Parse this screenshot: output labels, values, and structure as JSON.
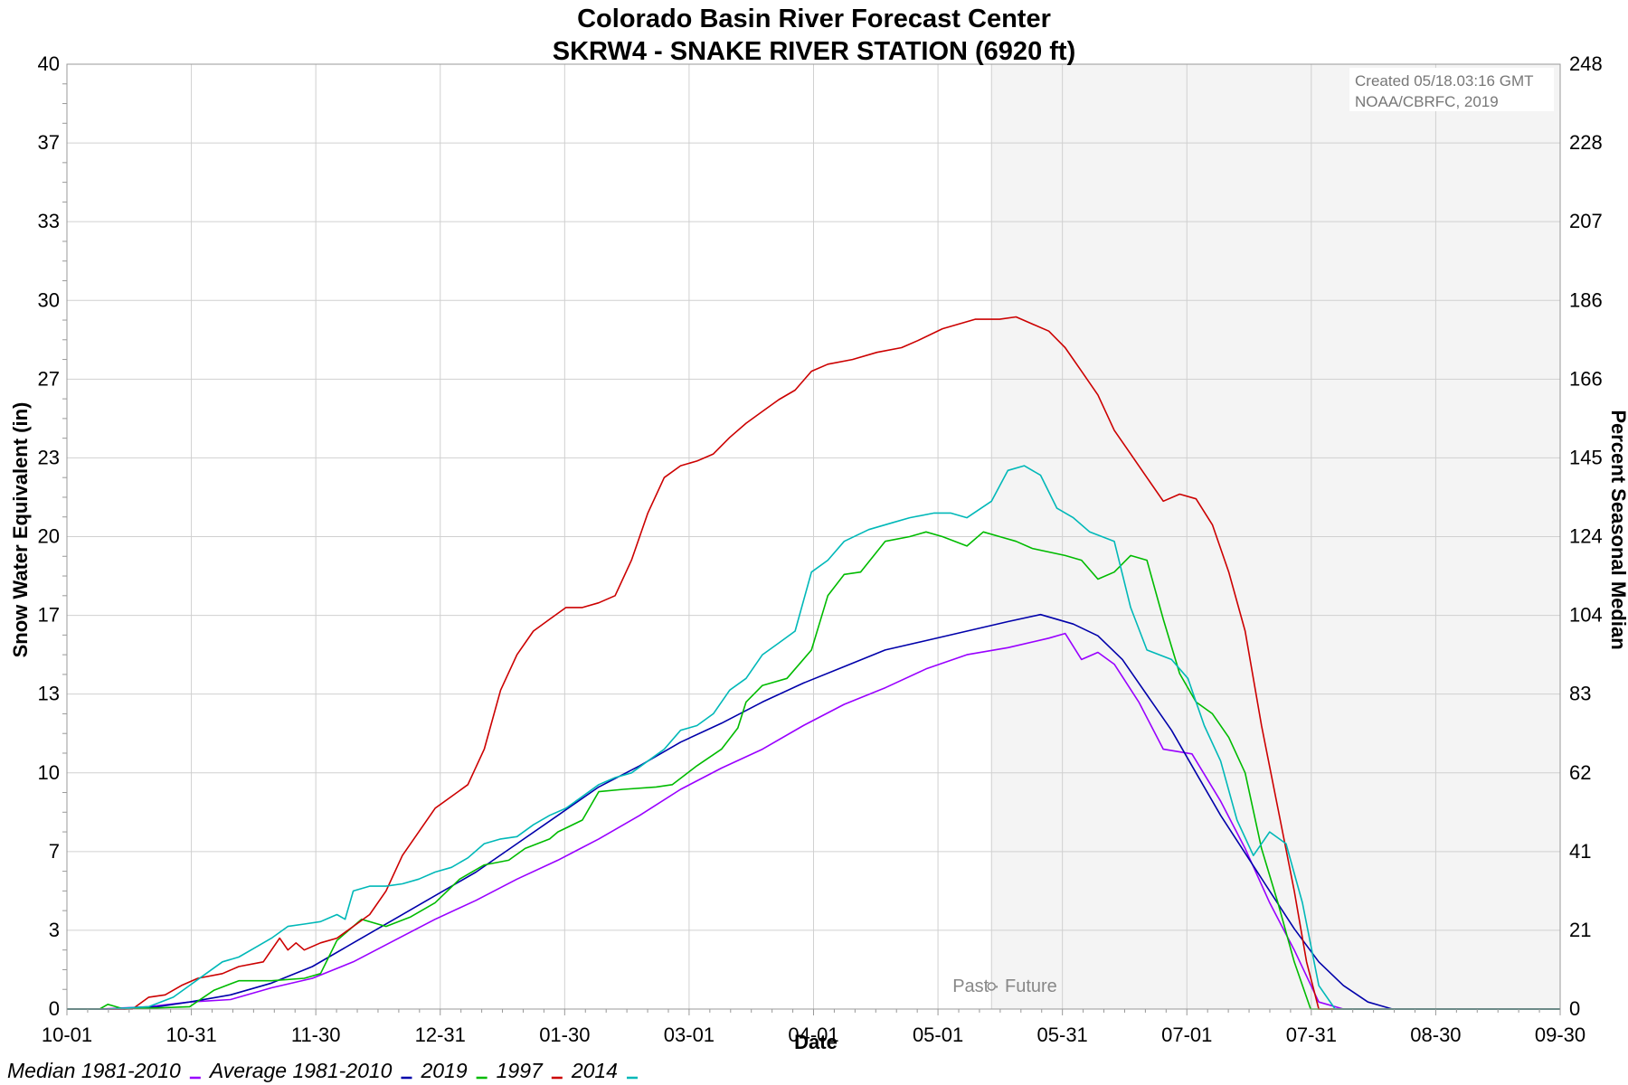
{
  "chart_data": {
    "type": "line",
    "title": "Colorado Basin River Forecast Center",
    "subtitle": "SKRW4 - SNAKE RIVER STATION (6920 ft)",
    "xlabel": "Date",
    "ylabel": "Snow Water Equivalent (in)",
    "y2label": "Percent Seasonal Median",
    "ylim": [
      0,
      40
    ],
    "y_ticks": [
      "0",
      "3",
      "7",
      "10",
      "13",
      "17",
      "20",
      "23",
      "27",
      "30",
      "33",
      "37",
      "40"
    ],
    "y2_ticks": [
      "0",
      "21",
      "41",
      "62",
      "83",
      "104",
      "124",
      "145",
      "166",
      "186",
      "207",
      "228",
      "248"
    ],
    "x_ticks": [
      "10-01",
      "10-31",
      "11-30",
      "12-31",
      "01-30",
      "03-01",
      "04-01",
      "05-01",
      "05-31",
      "07-01",
      "07-31",
      "08-30",
      "09-30"
    ],
    "xlim_days": [
      0,
      365
    ],
    "grid": true,
    "legend_position": "bottom-left",
    "created_note": [
      "Created 05/18.03:16 GMT",
      "NOAA/CBRFC, 2019"
    ],
    "past_future_label": "Past · Future",
    "current_day": 226,
    "series": [
      {
        "name": "Median 1981-2010",
        "color": "#9900ff",
        "points": [
          [
            0,
            0
          ],
          [
            8,
            0
          ],
          [
            20,
            0.1
          ],
          [
            30,
            0.3
          ],
          [
            40,
            0.4
          ],
          [
            50,
            0.9
          ],
          [
            60,
            1.3
          ],
          [
            70,
            2.0
          ],
          [
            80,
            2.9
          ],
          [
            90,
            3.8
          ],
          [
            100,
            4.6
          ],
          [
            110,
            5.5
          ],
          [
            120,
            6.3
          ],
          [
            130,
            7.2
          ],
          [
            140,
            8.2
          ],
          [
            150,
            9.3
          ],
          [
            160,
            10.2
          ],
          [
            170,
            11.0
          ],
          [
            180,
            12.0
          ],
          [
            190,
            12.9
          ],
          [
            200,
            13.6
          ],
          [
            210,
            14.4
          ],
          [
            220,
            15.0
          ],
          [
            230,
            15.3
          ],
          [
            240,
            15.7
          ],
          [
            244,
            15.9
          ],
          [
            248,
            14.8
          ],
          [
            252,
            15.1
          ],
          [
            256,
            14.6
          ],
          [
            262,
            13.0
          ],
          [
            268,
            11.0
          ],
          [
            275,
            10.8
          ],
          [
            282,
            8.8
          ],
          [
            288,
            6.8
          ],
          [
            294,
            4.5
          ],
          [
            300,
            2.5
          ],
          [
            306,
            0.3
          ],
          [
            312,
            0
          ],
          [
            365,
            0
          ]
        ]
      },
      {
        "name": "Average 1981-2010",
        "color": "#0000aa",
        "points": [
          [
            0,
            0
          ],
          [
            14,
            0
          ],
          [
            22,
            0.1
          ],
          [
            30,
            0.3
          ],
          [
            40,
            0.6
          ],
          [
            50,
            1.1
          ],
          [
            60,
            1.8
          ],
          [
            70,
            2.8
          ],
          [
            80,
            3.8
          ],
          [
            90,
            4.8
          ],
          [
            100,
            5.8
          ],
          [
            110,
            7.0
          ],
          [
            120,
            8.2
          ],
          [
            130,
            9.4
          ],
          [
            140,
            10.3
          ],
          [
            150,
            11.3
          ],
          [
            160,
            12.1
          ],
          [
            170,
            13.0
          ],
          [
            180,
            13.8
          ],
          [
            190,
            14.5
          ],
          [
            200,
            15.2
          ],
          [
            210,
            15.6
          ],
          [
            220,
            16.0
          ],
          [
            230,
            16.4
          ],
          [
            238,
            16.7
          ],
          [
            246,
            16.3
          ],
          [
            252,
            15.8
          ],
          [
            258,
            14.8
          ],
          [
            264,
            13.3
          ],
          [
            270,
            11.8
          ],
          [
            276,
            10.0
          ],
          [
            282,
            8.2
          ],
          [
            288,
            6.6
          ],
          [
            294,
            5.0
          ],
          [
            300,
            3.4
          ],
          [
            306,
            2.0
          ],
          [
            312,
            1.0
          ],
          [
            318,
            0.3
          ],
          [
            324,
            0
          ],
          [
            365,
            0
          ]
        ]
      },
      {
        "name": "2019",
        "color": "#00bb00",
        "points": [
          [
            0,
            0
          ],
          [
            8,
            0
          ],
          [
            10,
            0.2
          ],
          [
            14,
            0
          ],
          [
            30,
            0.1
          ],
          [
            36,
            0.8
          ],
          [
            42,
            1.2
          ],
          [
            50,
            1.2
          ],
          [
            58,
            1.3
          ],
          [
            62,
            1.5
          ],
          [
            66,
            2.9
          ],
          [
            72,
            3.8
          ],
          [
            78,
            3.5
          ],
          [
            84,
            3.9
          ],
          [
            90,
            4.5
          ],
          [
            96,
            5.5
          ],
          [
            102,
            6.1
          ],
          [
            108,
            6.3
          ],
          [
            112,
            6.8
          ],
          [
            118,
            7.2
          ],
          [
            120,
            7.5
          ],
          [
            126,
            8.0
          ],
          [
            130,
            9.2
          ],
          [
            136,
            9.3
          ],
          [
            144,
            9.4
          ],
          [
            148,
            9.5
          ],
          [
            154,
            10.3
          ],
          [
            160,
            11.0
          ],
          [
            164,
            11.9
          ],
          [
            166,
            13.0
          ],
          [
            170,
            13.7
          ],
          [
            176,
            14.0
          ],
          [
            182,
            15.2
          ],
          [
            186,
            17.5
          ],
          [
            190,
            18.4
          ],
          [
            194,
            18.5
          ],
          [
            200,
            19.8
          ],
          [
            206,
            20.0
          ],
          [
            210,
            20.2
          ],
          [
            214,
            20.0
          ],
          [
            220,
            19.6
          ],
          [
            224,
            20.2
          ],
          [
            228,
            20.0
          ],
          [
            232,
            19.8
          ],
          [
            236,
            19.5
          ],
          [
            244,
            19.2
          ],
          [
            248,
            19.0
          ],
          [
            252,
            18.2
          ],
          [
            256,
            18.5
          ],
          [
            260,
            19.2
          ],
          [
            264,
            19.0
          ],
          [
            268,
            16.5
          ],
          [
            272,
            14.2
          ],
          [
            276,
            13.0
          ],
          [
            280,
            12.5
          ],
          [
            284,
            11.5
          ],
          [
            288,
            10.0
          ],
          [
            292,
            6.8
          ],
          [
            296,
            4.5
          ],
          [
            300,
            2.0
          ],
          [
            304,
            0
          ],
          [
            365,
            0
          ]
        ]
      },
      {
        "name": "1997",
        "color": "#cc0000",
        "points": [
          [
            0,
            0
          ],
          [
            16,
            0
          ],
          [
            20,
            0.5
          ],
          [
            24,
            0.6
          ],
          [
            28,
            1.0
          ],
          [
            32,
            1.3
          ],
          [
            38,
            1.5
          ],
          [
            42,
            1.8
          ],
          [
            48,
            2.0
          ],
          [
            52,
            3.0
          ],
          [
            54,
            2.5
          ],
          [
            56,
            2.8
          ],
          [
            58,
            2.5
          ],
          [
            62,
            2.8
          ],
          [
            66,
            3.0
          ],
          [
            70,
            3.5
          ],
          [
            74,
            4.0
          ],
          [
            78,
            5.0
          ],
          [
            82,
            6.5
          ],
          [
            86,
            7.5
          ],
          [
            90,
            8.5
          ],
          [
            94,
            9.0
          ],
          [
            98,
            9.5
          ],
          [
            102,
            11.0
          ],
          [
            106,
            13.5
          ],
          [
            110,
            15.0
          ],
          [
            114,
            16.0
          ],
          [
            118,
            16.5
          ],
          [
            122,
            17.0
          ],
          [
            126,
            17.0
          ],
          [
            130,
            17.2
          ],
          [
            134,
            17.5
          ],
          [
            138,
            19.0
          ],
          [
            142,
            21.0
          ],
          [
            146,
            22.5
          ],
          [
            150,
            23.0
          ],
          [
            154,
            23.2
          ],
          [
            158,
            23.5
          ],
          [
            162,
            24.2
          ],
          [
            166,
            24.8
          ],
          [
            170,
            25.3
          ],
          [
            174,
            25.8
          ],
          [
            178,
            26.2
          ],
          [
            182,
            27.0
          ],
          [
            186,
            27.3
          ],
          [
            192,
            27.5
          ],
          [
            198,
            27.8
          ],
          [
            204,
            28.0
          ],
          [
            208,
            28.3
          ],
          [
            214,
            28.8
          ],
          [
            218,
            29.0
          ],
          [
            222,
            29.2
          ],
          [
            228,
            29.2
          ],
          [
            232,
            29.3
          ],
          [
            236,
            29.0
          ],
          [
            240,
            28.7
          ],
          [
            244,
            28.0
          ],
          [
            248,
            27.0
          ],
          [
            252,
            26.0
          ],
          [
            256,
            24.5
          ],
          [
            260,
            23.5
          ],
          [
            264,
            22.5
          ],
          [
            268,
            21.5
          ],
          [
            272,
            21.8
          ],
          [
            276,
            21.6
          ],
          [
            280,
            20.5
          ],
          [
            284,
            18.5
          ],
          [
            288,
            16.0
          ],
          [
            292,
            12.0
          ],
          [
            296,
            8.5
          ],
          [
            300,
            5.0
          ],
          [
            303,
            2.0
          ],
          [
            306,
            0
          ],
          [
            365,
            0
          ]
        ]
      },
      {
        "name": "2014",
        "color": "#00b8b8",
        "points": [
          [
            0,
            0
          ],
          [
            10,
            0
          ],
          [
            20,
            0.1
          ],
          [
            26,
            0.5
          ],
          [
            30,
            1.0
          ],
          [
            34,
            1.5
          ],
          [
            38,
            2.0
          ],
          [
            42,
            2.2
          ],
          [
            46,
            2.6
          ],
          [
            50,
            3.0
          ],
          [
            54,
            3.5
          ],
          [
            58,
            3.6
          ],
          [
            62,
            3.7
          ],
          [
            66,
            4.0
          ],
          [
            68,
            3.8
          ],
          [
            70,
            5.0
          ],
          [
            74,
            5.2
          ],
          [
            78,
            5.2
          ],
          [
            82,
            5.3
          ],
          [
            86,
            5.5
          ],
          [
            90,
            5.8
          ],
          [
            94,
            6.0
          ],
          [
            98,
            6.4
          ],
          [
            102,
            7.0
          ],
          [
            106,
            7.2
          ],
          [
            110,
            7.3
          ],
          [
            114,
            7.8
          ],
          [
            118,
            8.2
          ],
          [
            122,
            8.5
          ],
          [
            126,
            9.0
          ],
          [
            130,
            9.5
          ],
          [
            134,
            9.8
          ],
          [
            138,
            10.0
          ],
          [
            142,
            10.5
          ],
          [
            146,
            11.0
          ],
          [
            150,
            11.8
          ],
          [
            154,
            12.0
          ],
          [
            158,
            12.5
          ],
          [
            162,
            13.5
          ],
          [
            166,
            14.0
          ],
          [
            170,
            15.0
          ],
          [
            174,
            15.5
          ],
          [
            178,
            16.0
          ],
          [
            182,
            18.5
          ],
          [
            186,
            19.0
          ],
          [
            190,
            19.8
          ],
          [
            196,
            20.3
          ],
          [
            202,
            20.6
          ],
          [
            206,
            20.8
          ],
          [
            212,
            21.0
          ],
          [
            216,
            21.0
          ],
          [
            220,
            20.8
          ],
          [
            226,
            21.5
          ],
          [
            230,
            22.8
          ],
          [
            234,
            23.0
          ],
          [
            238,
            22.6
          ],
          [
            242,
            21.2
          ],
          [
            246,
            20.8
          ],
          [
            250,
            20.2
          ],
          [
            256,
            19.8
          ],
          [
            260,
            17.0
          ],
          [
            264,
            15.2
          ],
          [
            270,
            14.8
          ],
          [
            274,
            14.0
          ],
          [
            278,
            12.0
          ],
          [
            282,
            10.5
          ],
          [
            286,
            8.0
          ],
          [
            290,
            6.5
          ],
          [
            294,
            7.5
          ],
          [
            298,
            7.0
          ],
          [
            302,
            4.5
          ],
          [
            306,
            1.0
          ],
          [
            310,
            0
          ],
          [
            365,
            0
          ]
        ]
      }
    ]
  }
}
